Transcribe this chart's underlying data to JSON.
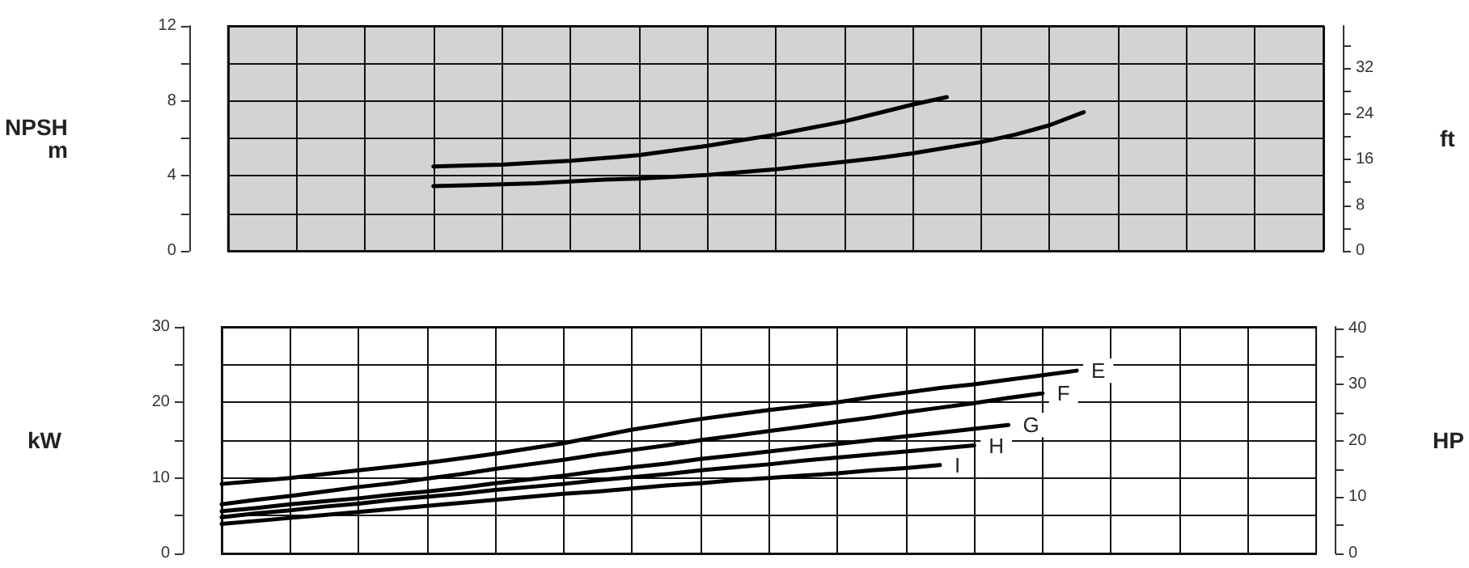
{
  "chart_data": [
    {
      "type": "line",
      "ylabel": "NPSH\nm",
      "y2label": "ft",
      "categories": [
        null,
        null,
        null,
        null,
        null,
        null,
        null,
        null,
        null,
        null,
        null,
        null,
        null,
        null,
        null,
        null,
        null,
        null,
        null,
        null,
        null,
        null,
        null,
        null,
        null,
        null,
        null,
        null,
        null,
        null,
        null,
        null,
        null
      ],
      "series": [
        {
          "color": "#000000",
          "values": [
            null,
            null,
            null,
            null,
            null,
            null,
            4.5,
            4.55,
            4.6,
            4.7,
            4.8,
            4.95,
            5.1,
            5.35,
            5.6,
            5.9,
            6.2,
            6.55,
            6.9,
            7.35,
            7.8,
            8.2,
            null,
            null,
            null,
            null,
            null,
            null,
            null,
            null,
            null,
            null,
            null
          ]
        },
        {
          "color": "#000000",
          "values": [
            null,
            null,
            null,
            null,
            null,
            null,
            3.45,
            3.5,
            3.55,
            3.6,
            3.7,
            3.8,
            3.85,
            3.95,
            4.05,
            4.2,
            4.35,
            4.55,
            4.75,
            4.95,
            5.2,
            5.5,
            5.8,
            6.2,
            6.7,
            7.4,
            null,
            null,
            null,
            null,
            null,
            null,
            null
          ]
        }
      ],
      "ylim": [
        0,
        12
      ],
      "yticks": [
        0,
        {
          "value": 2,
          "label": null
        },
        4,
        {
          "value": 6,
          "label": null
        },
        8,
        {
          "value": 10,
          "label": null
        },
        12
      ],
      "y2lim": [
        0,
        39.37
      ],
      "y2ticks": [
        0,
        {
          "value": 4,
          "label": null
        },
        8,
        {
          "value": 12,
          "label": null
        },
        16,
        {
          "value": 20,
          "label": null
        },
        24,
        {
          "value": 28,
          "label": null
        },
        32,
        {
          "value": 36,
          "label": null
        }
      ],
      "grid": true,
      "tick_labels": "y",
      "marker": "none",
      "line_style": "solid"
    },
    {
      "type": "line",
      "ylabel": "kW",
      "y2label": "HP",
      "categories": [
        null,
        null,
        null,
        null,
        null,
        null,
        null,
        null,
        null,
        null,
        null,
        null,
        null,
        null,
        null,
        null,
        null,
        null,
        null,
        null,
        null,
        null,
        null,
        null,
        null,
        null,
        null,
        null,
        null,
        null,
        null,
        null,
        null
      ],
      "series": [
        {
          "name": "E",
          "color": "#000000",
          "values": [
            9.2,
            9.6,
            10.0,
            10.5,
            11.0,
            11.5,
            12.0,
            12.6,
            13.2,
            13.9,
            14.6,
            15.5,
            16.4,
            17.1,
            17.8,
            18.4,
            19.0,
            19.5,
            20.0,
            20.7,
            21.3,
            21.9,
            22.4,
            23.0,
            23.6,
            24.2,
            null,
            null,
            null,
            null,
            null,
            null,
            null
          ]
        },
        {
          "name": "F",
          "color": "#000000",
          "values": [
            6.5,
            7.1,
            7.6,
            8.2,
            8.8,
            9.3,
            9.9,
            10.5,
            11.2,
            11.8,
            12.4,
            13.1,
            13.7,
            14.3,
            15.0,
            15.6,
            16.2,
            16.8,
            17.4,
            18.0,
            18.7,
            19.3,
            19.9,
            20.6,
            21.2,
            null,
            null,
            null,
            null,
            null,
            null,
            null,
            null
          ]
        },
        {
          "name": "G",
          "color": "#000000",
          "values": [
            5.6,
            6.0,
            6.5,
            6.9,
            7.3,
            7.8,
            8.2,
            8.7,
            9.3,
            9.8,
            10.3,
            10.9,
            11.4,
            11.9,
            12.5,
            13.0,
            13.5,
            14.0,
            14.5,
            15.0,
            15.5,
            16.0,
            16.5,
            17.0,
            null,
            null,
            null,
            null,
            null,
            null,
            null,
            null,
            null
          ]
        },
        {
          "name": "H",
          "color": "#000000",
          "values": [
            4.8,
            5.3,
            5.7,
            6.2,
            6.6,
            7.1,
            7.5,
            7.9,
            8.4,
            8.8,
            9.2,
            9.7,
            10.1,
            10.5,
            11.0,
            11.4,
            11.8,
            12.3,
            12.7,
            13.1,
            13.5,
            13.9,
            14.3,
            null,
            null,
            null,
            null,
            null,
            null,
            null,
            null,
            null,
            null
          ]
        },
        {
          "name": "I",
          "color": "#000000",
          "values": [
            3.9,
            4.3,
            4.7,
            5.1,
            5.5,
            5.9,
            6.3,
            6.7,
            7.1,
            7.5,
            7.9,
            8.2,
            8.6,
            9.0,
            9.3,
            9.7,
            10.0,
            10.3,
            10.6,
            11.0,
            11.3,
            11.7,
            null,
            null,
            null,
            null,
            null,
            null,
            null,
            null,
            null,
            null,
            null
          ]
        }
      ],
      "ylim": [
        0,
        30
      ],
      "yticks": [
        0,
        {
          "value": 5,
          "label": null
        },
        10,
        {
          "value": 15,
          "label": null
        },
        20,
        {
          "value": 25,
          "label": null
        },
        30
      ],
      "y2lim": [
        0,
        40.23
      ],
      "y2ticks": [
        0,
        {
          "value": 5,
          "label": null
        },
        10,
        {
          "value": 15,
          "label": null
        },
        20,
        {
          "value": 25,
          "label": null
        },
        30,
        {
          "value": 35,
          "label": null
        },
        40
      ],
      "grid": true,
      "tick_labels": "y",
      "marker": "none",
      "line_style": "solid"
    }
  ]
}
